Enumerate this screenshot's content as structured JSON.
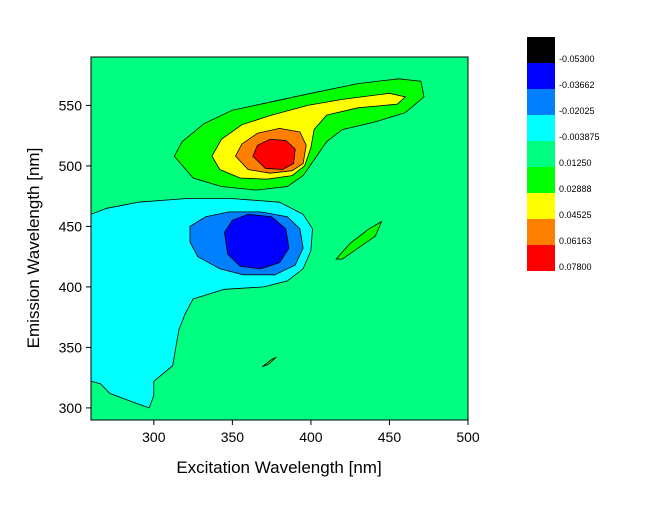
{
  "chart_data": {
    "type": "contour",
    "xlabel": "Excitation Wavelength [nm]",
    "ylabel": "Emission Wavelength [nm]",
    "xlim": [
      260,
      500
    ],
    "ylim": [
      290,
      590
    ],
    "xticks": [
      300,
      350,
      400,
      450,
      500
    ],
    "yticks": [
      300,
      350,
      400,
      450,
      500,
      550
    ],
    "background_level_color": "#00FF80",
    "levels": [
      {
        "label": "-0.05300",
        "color": "#000000"
      },
      {
        "label": "-0.03662",
        "color": "#0000FF"
      },
      {
        "label": "-0.02025",
        "color": "#0080FF"
      },
      {
        "label": "-0.003875",
        "color": "#00FFFF"
      },
      {
        "label": "0.01250",
        "color": "#00FF80"
      },
      {
        "label": "0.02888",
        "color": "#00FF00"
      },
      {
        "label": "0.04525",
        "color": "#FFFF00"
      },
      {
        "label": "0.06163",
        "color": "#FF8000"
      },
      {
        "label": "0.07800",
        "color": "#FF0000"
      }
    ],
    "regions": [
      {
        "name": "negative-outer",
        "color": "#00FFFF",
        "points": [
          [
            260,
            460
          ],
          [
            270,
            465
          ],
          [
            290,
            470
          ],
          [
            320,
            473
          ],
          [
            350,
            473
          ],
          [
            380,
            470
          ],
          [
            395,
            460
          ],
          [
            401,
            448
          ],
          [
            400,
            430
          ],
          [
            395,
            415
          ],
          [
            385,
            405
          ],
          [
            370,
            400
          ],
          [
            345,
            398
          ],
          [
            325,
            390
          ],
          [
            320,
            378
          ],
          [
            316,
            365
          ],
          [
            314,
            350
          ],
          [
            312,
            335
          ],
          [
            300,
            322
          ],
          [
            300,
            310
          ],
          [
            297,
            300
          ],
          [
            282,
            307
          ],
          [
            272,
            312
          ],
          [
            266,
            320
          ],
          [
            260,
            322
          ]
        ]
      },
      {
        "name": "negative-mid",
        "color": "#0080FF",
        "points": [
          [
            323,
            450
          ],
          [
            333,
            458
          ],
          [
            348,
            462
          ],
          [
            368,
            462
          ],
          [
            385,
            458
          ],
          [
            393,
            448
          ],
          [
            395,
            432
          ],
          [
            390,
            418
          ],
          [
            377,
            410
          ],
          [
            357,
            410
          ],
          [
            342,
            415
          ],
          [
            328,
            425
          ],
          [
            323,
            437
          ]
        ]
      },
      {
        "name": "negative-core",
        "color": "#0000FF",
        "points": [
          [
            345,
            445
          ],
          [
            350,
            455
          ],
          [
            360,
            460
          ],
          [
            375,
            458
          ],
          [
            384,
            448
          ],
          [
            386,
            432
          ],
          [
            380,
            420
          ],
          [
            368,
            415
          ],
          [
            355,
            417
          ],
          [
            347,
            427
          ]
        ]
      },
      {
        "name": "positive-outer",
        "color": "#00FF00",
        "points": [
          [
            313,
            508
          ],
          [
            318,
            520
          ],
          [
            332,
            535
          ],
          [
            350,
            546
          ],
          [
            375,
            553
          ],
          [
            400,
            560
          ],
          [
            430,
            568
          ],
          [
            456,
            572
          ],
          [
            470,
            570
          ],
          [
            472,
            557
          ],
          [
            460,
            544
          ],
          [
            440,
            536
          ],
          [
            420,
            530
          ],
          [
            410,
            520
          ],
          [
            402,
            505
          ],
          [
            395,
            492
          ],
          [
            385,
            483
          ],
          [
            365,
            480
          ],
          [
            343,
            483
          ],
          [
            325,
            490
          ]
        ]
      },
      {
        "name": "positive-mid",
        "color": "#FFFF00",
        "points": [
          [
            337,
            508
          ],
          [
            343,
            522
          ],
          [
            356,
            534
          ],
          [
            375,
            542
          ],
          [
            398,
            550
          ],
          [
            420,
            555
          ],
          [
            450,
            560
          ],
          [
            460,
            557
          ],
          [
            455,
            551
          ],
          [
            430,
            548
          ],
          [
            410,
            542
          ],
          [
            402,
            530
          ],
          [
            400,
            515
          ],
          [
            396,
            500
          ],
          [
            388,
            492
          ],
          [
            372,
            489
          ],
          [
            355,
            490
          ],
          [
            342,
            497
          ]
        ]
      },
      {
        "name": "positive-inner",
        "color": "#FF8000",
        "points": [
          [
            352,
            508
          ],
          [
            356,
            518
          ],
          [
            366,
            527
          ],
          [
            380,
            531
          ],
          [
            393,
            528
          ],
          [
            397,
            517
          ],
          [
            395,
            502
          ],
          [
            388,
            496
          ],
          [
            374,
            494
          ],
          [
            360,
            497
          ]
        ]
      },
      {
        "name": "positive-peak",
        "color": "#FF0000",
        "points": [
          [
            363,
            508
          ],
          [
            366,
            517
          ],
          [
            374,
            522
          ],
          [
            384,
            521
          ],
          [
            390,
            514
          ],
          [
            389,
            502
          ],
          [
            382,
            497
          ],
          [
            371,
            498
          ]
        ]
      },
      {
        "name": "diagonal-band-upper",
        "color": "#00FF00",
        "points": [
          [
            416,
            423
          ],
          [
            425,
            436
          ],
          [
            437,
            448
          ],
          [
            445,
            454
          ],
          [
            441,
            442
          ],
          [
            430,
            432
          ],
          [
            420,
            423
          ]
        ]
      },
      {
        "name": "diagonal-band-lower",
        "color": "#00FF00",
        "points": [
          [
            369,
            334
          ],
          [
            375,
            340
          ],
          [
            378,
            342
          ],
          [
            373,
            336
          ]
        ]
      }
    ]
  }
}
